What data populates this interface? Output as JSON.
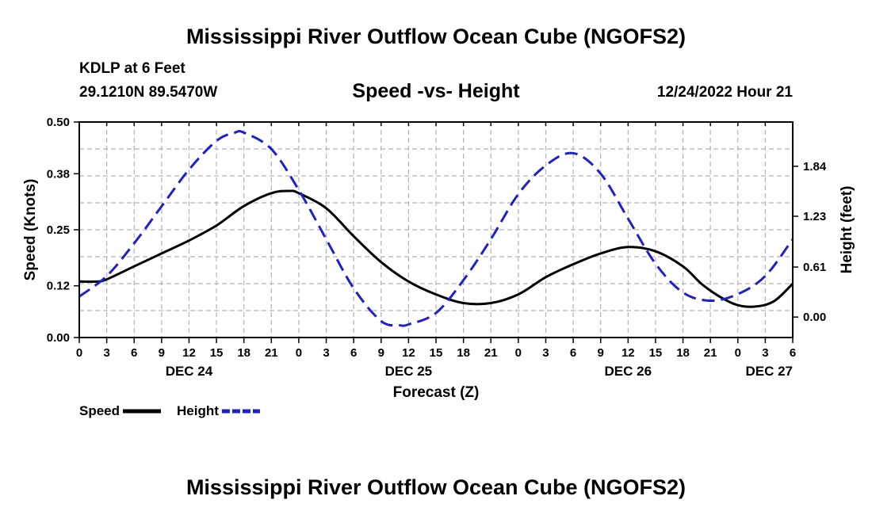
{
  "title": "Mississippi River Outflow Ocean Cube (NGOFS2)",
  "footer_title": "Mississippi River Outflow Ocean Cube (NGOFS2)",
  "station": "KDLP at 6 Feet",
  "coords": "29.1210N  89.5470W",
  "subtitle": "Speed -vs- Height",
  "datetime": "12/24/2022 Hour 21",
  "chart_data": {
    "type": "line",
    "x_unit": "forecast hours since DEC 24 00Z",
    "xlim": [
      0,
      78
    ],
    "x_ticks": [
      0,
      3,
      6,
      9,
      12,
      15,
      18,
      21,
      24,
      27,
      30,
      33,
      36,
      39,
      42,
      45,
      48,
      51,
      54,
      57,
      60,
      63,
      66,
      69,
      72,
      75,
      78
    ],
    "x_tick_labels": [
      "0",
      "3",
      "6",
      "9",
      "12",
      "15",
      "18",
      "21",
      "0",
      "3",
      "6",
      "9",
      "12",
      "15",
      "18",
      "21",
      "0",
      "3",
      "6",
      "9",
      "12",
      "15",
      "18",
      "21",
      "0",
      "3",
      "6"
    ],
    "day_labels": [
      {
        "x": 12,
        "label": "DEC 24"
      },
      {
        "x": 36,
        "label": "DEC 25"
      },
      {
        "x": 60,
        "label": "DEC 26"
      },
      {
        "x": 78,
        "label": "DEC 27"
      }
    ],
    "xlabel": "Forecast (Z)",
    "ylabel": "Speed (Knots)",
    "ylim": [
      0,
      0.5
    ],
    "y_ticks": [
      0.0,
      0.12,
      0.25,
      0.38,
      0.5
    ],
    "y_tick_labels": [
      "0.00",
      "0.12",
      "0.25",
      "0.38",
      "0.50"
    ],
    "y2label": "Height (feet)",
    "y2lim": [
      -0.25,
      2.38
    ],
    "y2_ticks": [
      0.0,
      0.61,
      1.23,
      1.84
    ],
    "y2_tick_labels": [
      "0.00",
      "0.61",
      "1.23",
      "1.84"
    ],
    "series": [
      {
        "name": "Speed",
        "axis": "left",
        "color": "#000000",
        "dash": false,
        "x": [
          0,
          2,
          3,
          6,
          9,
          12,
          15,
          18,
          21,
          23,
          24,
          27,
          30,
          33,
          36,
          39,
          42,
          45,
          48,
          51,
          54,
          57,
          60,
          63,
          66,
          68,
          70,
          72,
          74,
          76,
          78
        ],
        "values": [
          0.13,
          0.13,
          0.135,
          0.165,
          0.195,
          0.225,
          0.26,
          0.305,
          0.335,
          0.34,
          0.335,
          0.3,
          0.235,
          0.175,
          0.13,
          0.1,
          0.08,
          0.08,
          0.1,
          0.14,
          0.17,
          0.195,
          0.21,
          0.2,
          0.165,
          0.125,
          0.095,
          0.075,
          0.072,
          0.085,
          0.125
        ]
      },
      {
        "name": "Height",
        "axis": "right",
        "color": "#1f1fcc",
        "dash": true,
        "x": [
          0,
          3,
          6,
          9,
          12,
          15,
          17,
          18,
          21,
          24,
          27,
          30,
          33,
          35,
          36,
          39,
          42,
          45,
          48,
          51,
          54,
          57,
          60,
          63,
          66,
          69,
          72,
          75,
          78
        ],
        "values": [
          0.25,
          0.5,
          0.9,
          1.35,
          1.8,
          2.15,
          2.25,
          2.25,
          2.05,
          1.55,
          0.95,
          0.35,
          -0.05,
          -0.1,
          -0.09,
          0.05,
          0.45,
          0.95,
          1.5,
          1.85,
          2.0,
          1.75,
          1.2,
          0.65,
          0.3,
          0.2,
          0.28,
          0.5,
          0.95
        ]
      }
    ],
    "legend": [
      {
        "label": "Speed",
        "color": "#000000",
        "dash": false
      },
      {
        "label": "Height",
        "color": "#1f1fcc",
        "dash": true
      }
    ],
    "grid": true
  }
}
